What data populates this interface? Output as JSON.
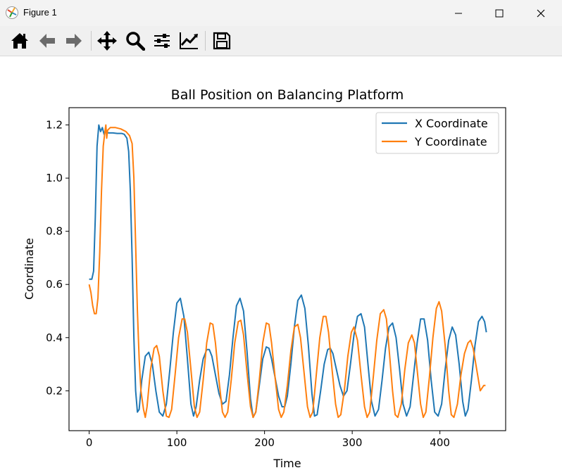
{
  "window": {
    "title": "Figure 1"
  },
  "toolbar": {
    "buttons": [
      {
        "name": "home-icon"
      },
      {
        "name": "back-arrow-icon"
      },
      {
        "name": "forward-arrow-icon"
      },
      {
        "name": "pan-icon"
      },
      {
        "name": "zoom-icon"
      },
      {
        "name": "configure-subplots-icon"
      },
      {
        "name": "edit-axis-icon"
      },
      {
        "name": "save-icon"
      }
    ]
  },
  "chart_data": {
    "type": "line",
    "title": "Ball Position on Balancing Platform",
    "xlabel": "Time",
    "ylabel": "Coordinate",
    "xlim": [
      -23,
      475
    ],
    "ylim": [
      0.05,
      1.265
    ],
    "xticks": [
      0,
      100,
      200,
      300,
      400
    ],
    "xtick_labels": [
      "0",
      "100",
      "200",
      "300",
      "400"
    ],
    "yticks": [
      0.2,
      0.4,
      0.6,
      0.8,
      1.0,
      1.2
    ],
    "ytick_labels": [
      "0.2",
      "0.4",
      "0.6",
      "0.8",
      "1.0",
      "1.2"
    ],
    "grid": false,
    "legend_position": "top-right",
    "series": [
      {
        "name": "X Coordinate",
        "color": "#1f77b4",
        "points": [
          [
            0,
            0.62
          ],
          [
            3,
            0.62
          ],
          [
            5,
            0.65
          ],
          [
            7,
            0.85
          ],
          [
            9,
            1.12
          ],
          [
            11,
            1.2
          ],
          [
            13,
            1.175
          ],
          [
            15,
            1.19
          ],
          [
            17,
            1.165
          ],
          [
            19,
            1.175
          ],
          [
            22,
            1.17
          ],
          [
            27,
            1.17
          ],
          [
            32,
            1.168
          ],
          [
            37,
            1.168
          ],
          [
            40,
            1.165
          ],
          [
            43,
            1.15
          ],
          [
            45,
            1.1
          ],
          [
            47,
            0.95
          ],
          [
            49,
            0.7
          ],
          [
            51,
            0.4
          ],
          [
            53,
            0.2
          ],
          [
            55,
            0.12
          ],
          [
            57,
            0.13
          ],
          [
            60,
            0.24
          ],
          [
            64,
            0.33
          ],
          [
            68,
            0.345
          ],
          [
            72,
            0.3
          ],
          [
            76,
            0.2
          ],
          [
            80,
            0.12
          ],
          [
            84,
            0.105
          ],
          [
            88,
            0.15
          ],
          [
            92,
            0.28
          ],
          [
            96,
            0.42
          ],
          [
            100,
            0.53
          ],
          [
            104,
            0.548
          ],
          [
            108,
            0.48
          ],
          [
            112,
            0.32
          ],
          [
            116,
            0.15
          ],
          [
            119,
            0.105
          ],
          [
            122,
            0.14
          ],
          [
            126,
            0.24
          ],
          [
            130,
            0.32
          ],
          [
            134,
            0.355
          ],
          [
            137,
            0.355
          ],
          [
            140,
            0.33
          ],
          [
            144,
            0.26
          ],
          [
            148,
            0.19
          ],
          [
            152,
            0.15
          ],
          [
            156,
            0.16
          ],
          [
            160,
            0.26
          ],
          [
            164,
            0.4
          ],
          [
            168,
            0.52
          ],
          [
            172,
            0.548
          ],
          [
            176,
            0.5
          ],
          [
            180,
            0.35
          ],
          [
            184,
            0.17
          ],
          [
            187,
            0.1
          ],
          [
            190,
            0.12
          ],
          [
            194,
            0.22
          ],
          [
            198,
            0.32
          ],
          [
            202,
            0.365
          ],
          [
            205,
            0.36
          ],
          [
            208,
            0.32
          ],
          [
            212,
            0.25
          ],
          [
            216,
            0.18
          ],
          [
            220,
            0.14
          ],
          [
            223,
            0.14
          ],
          [
            226,
            0.18
          ],
          [
            230,
            0.3
          ],
          [
            234,
            0.44
          ],
          [
            238,
            0.54
          ],
          [
            242,
            0.56
          ],
          [
            246,
            0.51
          ],
          [
            250,
            0.37
          ],
          [
            254,
            0.19
          ],
          [
            257,
            0.105
          ],
          [
            260,
            0.11
          ],
          [
            264,
            0.2
          ],
          [
            268,
            0.3
          ],
          [
            272,
            0.355
          ],
          [
            275,
            0.36
          ],
          [
            278,
            0.34
          ],
          [
            282,
            0.28
          ],
          [
            286,
            0.22
          ],
          [
            290,
            0.18
          ],
          [
            294,
            0.2
          ],
          [
            298,
            0.3
          ],
          [
            302,
            0.41
          ],
          [
            306,
            0.48
          ],
          [
            310,
            0.49
          ],
          [
            314,
            0.44
          ],
          [
            318,
            0.3
          ],
          [
            322,
            0.16
          ],
          [
            326,
            0.105
          ],
          [
            330,
            0.13
          ],
          [
            334,
            0.24
          ],
          [
            338,
            0.36
          ],
          [
            342,
            0.44
          ],
          [
            346,
            0.455
          ],
          [
            350,
            0.4
          ],
          [
            354,
            0.28
          ],
          [
            358,
            0.15
          ],
          [
            362,
            0.105
          ],
          [
            366,
            0.14
          ],
          [
            370,
            0.26
          ],
          [
            374,
            0.38
          ],
          [
            378,
            0.47
          ],
          [
            382,
            0.47
          ],
          [
            386,
            0.39
          ],
          [
            390,
            0.24
          ],
          [
            394,
            0.12
          ],
          [
            398,
            0.105
          ],
          [
            402,
            0.15
          ],
          [
            406,
            0.28
          ],
          [
            410,
            0.39
          ],
          [
            414,
            0.44
          ],
          [
            418,
            0.41
          ],
          [
            422,
            0.3
          ],
          [
            426,
            0.16
          ],
          [
            429,
            0.105
          ],
          [
            432,
            0.13
          ],
          [
            436,
            0.24
          ],
          [
            440,
            0.37
          ],
          [
            444,
            0.46
          ],
          [
            448,
            0.48
          ],
          [
            451,
            0.46
          ],
          [
            453,
            0.42
          ]
        ]
      },
      {
        "name": "Y Coordinate",
        "color": "#ff7f0e",
        "points": [
          [
            0,
            0.6
          ],
          [
            2,
            0.57
          ],
          [
            4,
            0.52
          ],
          [
            6,
            0.49
          ],
          [
            8,
            0.49
          ],
          [
            10,
            0.55
          ],
          [
            12,
            0.72
          ],
          [
            14,
            0.95
          ],
          [
            16,
            1.12
          ],
          [
            18,
            1.175
          ],
          [
            19,
            1.2
          ],
          [
            20,
            1.15
          ],
          [
            21,
            1.18
          ],
          [
            24,
            1.19
          ],
          [
            30,
            1.19
          ],
          [
            36,
            1.185
          ],
          [
            42,
            1.175
          ],
          [
            46,
            1.16
          ],
          [
            49,
            1.13
          ],
          [
            51,
            1.0
          ],
          [
            53,
            0.75
          ],
          [
            55,
            0.5
          ],
          [
            57,
            0.32
          ],
          [
            59,
            0.2
          ],
          [
            62,
            0.13
          ],
          [
            64,
            0.1
          ],
          [
            66,
            0.14
          ],
          [
            70,
            0.28
          ],
          [
            74,
            0.36
          ],
          [
            77,
            0.37
          ],
          [
            80,
            0.33
          ],
          [
            84,
            0.2
          ],
          [
            88,
            0.105
          ],
          [
            91,
            0.1
          ],
          [
            94,
            0.13
          ],
          [
            98,
            0.26
          ],
          [
            102,
            0.4
          ],
          [
            106,
            0.47
          ],
          [
            109,
            0.47
          ],
          [
            112,
            0.42
          ],
          [
            116,
            0.28
          ],
          [
            120,
            0.14
          ],
          [
            123,
            0.1
          ],
          [
            126,
            0.12
          ],
          [
            130,
            0.24
          ],
          [
            134,
            0.38
          ],
          [
            138,
            0.455
          ],
          [
            141,
            0.45
          ],
          [
            144,
            0.38
          ],
          [
            148,
            0.24
          ],
          [
            152,
            0.12
          ],
          [
            155,
            0.1
          ],
          [
            158,
            0.12
          ],
          [
            162,
            0.24
          ],
          [
            166,
            0.38
          ],
          [
            170,
            0.46
          ],
          [
            173,
            0.465
          ],
          [
            176,
            0.41
          ],
          [
            180,
            0.27
          ],
          [
            184,
            0.14
          ],
          [
            187,
            0.1
          ],
          [
            190,
            0.12
          ],
          [
            194,
            0.24
          ],
          [
            198,
            0.38
          ],
          [
            202,
            0.455
          ],
          [
            205,
            0.45
          ],
          [
            208,
            0.38
          ],
          [
            212,
            0.25
          ],
          [
            216,
            0.13
          ],
          [
            219,
            0.1
          ],
          [
            222,
            0.12
          ],
          [
            226,
            0.22
          ],
          [
            230,
            0.35
          ],
          [
            234,
            0.44
          ],
          [
            238,
            0.45
          ],
          [
            241,
            0.4
          ],
          [
            245,
            0.27
          ],
          [
            249,
            0.14
          ],
          [
            252,
            0.1
          ],
          [
            255,
            0.12
          ],
          [
            259,
            0.26
          ],
          [
            263,
            0.4
          ],
          [
            267,
            0.48
          ],
          [
            270,
            0.48
          ],
          [
            273,
            0.42
          ],
          [
            277,
            0.28
          ],
          [
            281,
            0.15
          ],
          [
            284,
            0.1
          ],
          [
            287,
            0.11
          ],
          [
            291,
            0.2
          ],
          [
            295,
            0.33
          ],
          [
            299,
            0.42
          ],
          [
            302,
            0.44
          ],
          [
            306,
            0.39
          ],
          [
            310,
            0.26
          ],
          [
            314,
            0.14
          ],
          [
            317,
            0.1
          ],
          [
            320,
            0.12
          ],
          [
            324,
            0.25
          ],
          [
            328,
            0.39
          ],
          [
            332,
            0.49
          ],
          [
            336,
            0.505
          ],
          [
            339,
            0.47
          ],
          [
            342,
            0.36
          ],
          [
            346,
            0.2
          ],
          [
            349,
            0.11
          ],
          [
            352,
            0.1
          ],
          [
            356,
            0.15
          ],
          [
            360,
            0.28
          ],
          [
            364,
            0.38
          ],
          [
            368,
            0.41
          ],
          [
            371,
            0.38
          ],
          [
            374,
            0.28
          ],
          [
            378,
            0.15
          ],
          [
            381,
            0.1
          ],
          [
            384,
            0.12
          ],
          [
            388,
            0.25
          ],
          [
            392,
            0.4
          ],
          [
            396,
            0.51
          ],
          [
            399,
            0.535
          ],
          [
            402,
            0.5
          ],
          [
            406,
            0.37
          ],
          [
            410,
            0.2
          ],
          [
            413,
            0.11
          ],
          [
            416,
            0.1
          ],
          [
            420,
            0.15
          ],
          [
            424,
            0.26
          ],
          [
            428,
            0.34
          ],
          [
            432,
            0.38
          ],
          [
            435,
            0.39
          ],
          [
            438,
            0.36
          ],
          [
            442,
            0.28
          ],
          [
            446,
            0.2
          ],
          [
            450,
            0.22
          ],
          [
            452,
            0.22
          ]
        ]
      }
    ]
  }
}
